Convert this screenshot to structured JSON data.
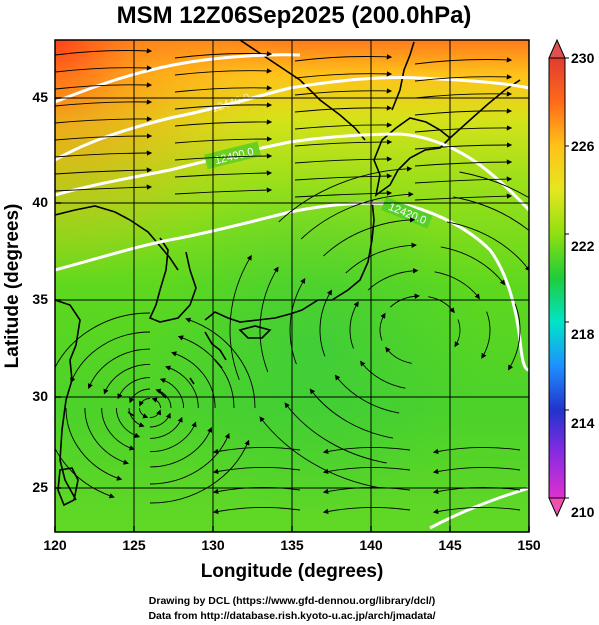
{
  "title": "MSM 12Z06Sep2025 (200.0hPa)",
  "x_axis": {
    "label": "Longitude (degrees)",
    "ticks": [
      "120",
      "125",
      "130",
      "135",
      "140",
      "145",
      "150"
    ]
  },
  "y_axis": {
    "label": "Latitude  (degrees)",
    "ticks": [
      "25",
      "30",
      "35",
      "40",
      "45"
    ]
  },
  "colorbar": {
    "ticks": [
      "210",
      "214",
      "218",
      "222",
      "226",
      "230"
    ],
    "colors": [
      "#e030d0",
      "#8a2be2",
      "#2233cc",
      "#1e90ff",
      "#00e5c8",
      "#1fcc3a",
      "#8ee010",
      "#e6e620",
      "#ff9900",
      "#ff3b1a",
      "#e03c30"
    ]
  },
  "contour_labels": [
    "12400.0",
    "12420.0",
    "12440.0"
  ],
  "credits": {
    "line1": "Drawing by DCL (https://www.gfd-dennou.org/library/dcl/)",
    "line2": "Data from http://database.rish.kyoto-u.ac.jp/arch/jmadata/"
  },
  "chart_data": {
    "type": "heatmap",
    "variable": "temperature with wind streamlines and geopotential height contours",
    "xlim": [
      120,
      150
    ],
    "ylim": [
      22.5,
      48
    ],
    "color_range": [
      210,
      230
    ],
    "typhoon_center": {
      "lon": 126.5,
      "lat": 29.5
    }
  }
}
